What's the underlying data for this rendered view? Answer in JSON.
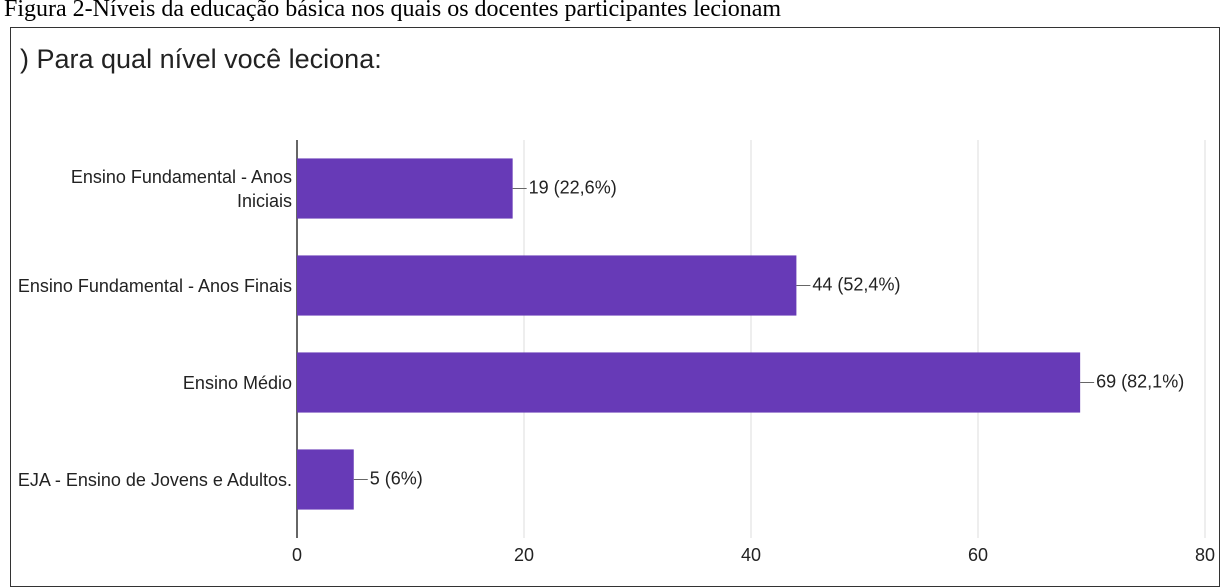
{
  "caption": "Figura 2-Níveis da educação básica nos quais os docentes participantes lecionam",
  "chart_data": {
    "type": "bar",
    "orientation": "horizontal",
    "title": ") Para qual nível você leciona:",
    "categories": [
      "Ensino Fundamental - Anos Iniciais",
      "Ensino Fundamental - Anos Finais",
      "Ensino Médio",
      "EJA - Ensino de Jovens e Adultos."
    ],
    "values": [
      19,
      44,
      69,
      5
    ],
    "value_labels": [
      "19 (22,6%)",
      "44 (52,4%)",
      "69 (82,1%)",
      "5 (6%)"
    ],
    "color": "#673ab7",
    "xlim": [
      0,
      80
    ],
    "xticks": [
      0,
      20,
      40,
      60,
      80
    ],
    "grid": true
  }
}
